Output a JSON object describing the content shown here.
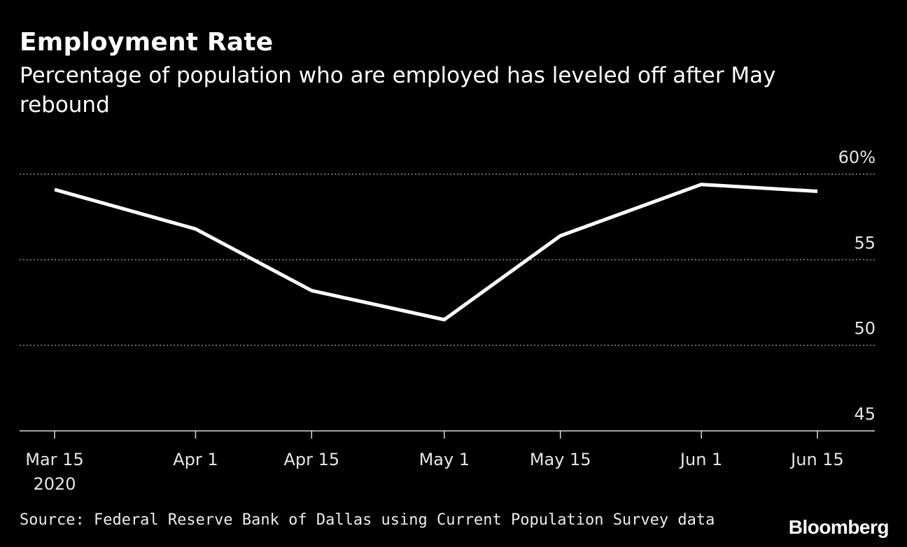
{
  "header": {
    "title": "Employment Rate",
    "subtitle": "Percentage of population who are employed has leveled off after May rebound"
  },
  "footer": {
    "source": "Source: Federal Reserve Bank of Dallas using Current Population Survey data",
    "brand": "Bloomberg"
  },
  "colors": {
    "background": "#000000",
    "line": "#ffffff",
    "grid": "#8c8c8c",
    "text": "#ffffff"
  },
  "chart_data": {
    "type": "line",
    "title": "Employment Rate",
    "subtitle": "Percentage of population who are employed has leveled off after May rebound",
    "x": [
      "2020-03-15",
      "2020-04-01",
      "2020-04-15",
      "2020-05-01",
      "2020-05-15",
      "2020-06-01",
      "2020-06-15"
    ],
    "x_tick_labels": [
      "Mar 15",
      "Apr 1",
      "Apr 15",
      "May 1",
      "May 15",
      "Jun 1",
      "Jun 15"
    ],
    "x_tick_sublabel": "2020",
    "series": [
      {
        "values": [
          59.1,
          56.8,
          53.2,
          51.5,
          56.4,
          59.4,
          59.0
        ]
      }
    ],
    "y_ticks": [
      45,
      50,
      55,
      60
    ],
    "y_tick_labels": [
      "45",
      "50",
      "55",
      "60%"
    ],
    "ylim": [
      45,
      60
    ],
    "grid": true,
    "y_axis_side": "right"
  }
}
